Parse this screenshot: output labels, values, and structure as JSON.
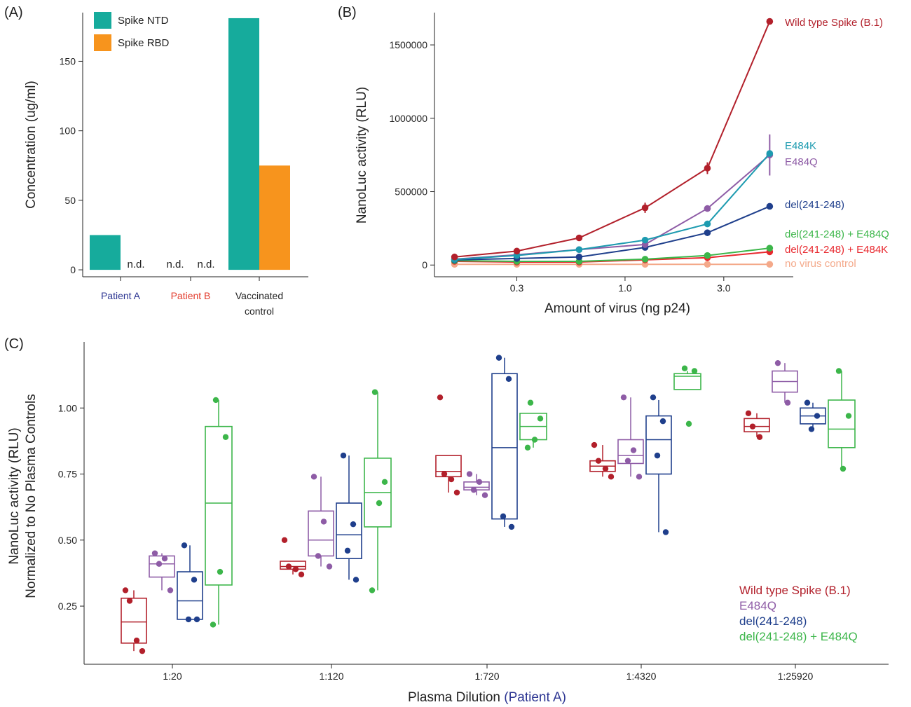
{
  "colors": {
    "ntd": "#16ab9c",
    "rbd": "#f7941d",
    "wt": "#b2202b",
    "e484k": "#1d9bb0",
    "e484q": "#8e5ca6",
    "del": "#1f3f8c",
    "del_e484q": "#3cb64a",
    "del_e484k": "#e8282e",
    "novirus": "#f4a98a",
    "patientA": "#2c3592",
    "patientB": "#e23b2c"
  },
  "chart_data": [
    {
      "panel": "(A)",
      "type": "bar",
      "categories": [
        [
          "Patient A"
        ],
        [
          "Patient B"
        ],
        [
          "Vaccinated",
          "control"
        ]
      ],
      "series": [
        {
          "name": "Spike NTD",
          "values": [
            25,
            null,
            181
          ]
        },
        {
          "name": "Spike RBD",
          "values": [
            null,
            null,
            75
          ]
        }
      ],
      "not_detected_label": "n.d.",
      "ylabel": "Concentration (ug/ml)",
      "ylim": [
        -5,
        185
      ],
      "yticks": [
        0,
        50,
        100,
        150
      ],
      "legend": "top-left"
    },
    {
      "panel": "(B)",
      "type": "line",
      "x": [
        0.15,
        0.3,
        0.6,
        1.25,
        2.5,
        5.0
      ],
      "xscale": "log",
      "xticks": [
        0.3,
        1.0,
        3.0
      ],
      "xtick_labels": [
        "0.3",
        "1.0",
        "3.0"
      ],
      "xlim": [
        0.12,
        6.5
      ],
      "xlabel": "Amount of virus (ng p24)",
      "ylabel": "NanoLuc activity (RLU)",
      "ylim": [
        -80000,
        1720000
      ],
      "yticks": [
        0,
        500000,
        1000000,
        1500000
      ],
      "series": [
        {
          "name": "Wild type Spike (B.1)",
          "values": [
            55000,
            95000,
            185000,
            390000,
            660000,
            1660000
          ],
          "errors": [
            0,
            0,
            0,
            35000,
            40000,
            0
          ],
          "color_key": "wt"
        },
        {
          "name": "E484K",
          "values": [
            38000,
            65000,
            105000,
            170000,
            280000,
            760000
          ],
          "errors": [
            0,
            0,
            0,
            0,
            0,
            0
          ],
          "color_key": "e484k"
        },
        {
          "name": "E484Q",
          "values": [
            40000,
            70000,
            105000,
            140000,
            385000,
            750000
          ],
          "errors": [
            0,
            0,
            0,
            0,
            0,
            140000
          ],
          "color_key": "e484q"
        },
        {
          "name": "del(241-248)",
          "values": [
            35000,
            45000,
            55000,
            120000,
            220000,
            400000
          ],
          "errors": [
            0,
            0,
            0,
            0,
            0,
            0
          ],
          "color_key": "del"
        },
        {
          "name": "del(241-248) + E484Q",
          "values": [
            30000,
            25000,
            25000,
            40000,
            65000,
            115000
          ],
          "errors": [
            0,
            0,
            0,
            0,
            0,
            0
          ],
          "color_key": "del_e484q"
        },
        {
          "name": "del(241-248) + E484K",
          "values": [
            25000,
            20000,
            20000,
            35000,
            50000,
            90000
          ],
          "errors": [
            0,
            0,
            0,
            0,
            0,
            0
          ],
          "color_key": "del_e484k"
        },
        {
          "name": "no virus control",
          "values": [
            5000,
            5000,
            5000,
            5000,
            5000,
            5000
          ],
          "errors": [
            0,
            0,
            0,
            0,
            0,
            0
          ],
          "color_key": "novirus"
        }
      ]
    },
    {
      "panel": "(C)",
      "type": "box",
      "categories": [
        "1:20",
        "1:120",
        "1:720",
        "1:4320",
        "1:25920"
      ],
      "xlabel": "Plasma Dilution",
      "xlabel_highlight": "(Patient A)",
      "ylabel": [
        "NanoLuc activity (RLU)",
        "Normalized to No Plasma Controls"
      ],
      "ylim": [
        0.03,
        1.25
      ],
      "yticks": [
        0.25,
        0.5,
        0.75,
        1.0
      ],
      "ytick_labels": [
        "0.25",
        "0.50",
        "0.75",
        "1.00"
      ],
      "legend": "bottom-right",
      "series": [
        {
          "name": "Wild type Spike (B.1)",
          "color_key": "wt",
          "groups": [
            {
              "q1": 0.11,
              "median": 0.19,
              "q3": 0.28,
              "lo": 0.08,
              "hi": 0.31,
              "points": [
                0.31,
                0.27,
                0.12,
                0.08
              ]
            },
            {
              "q1": 0.39,
              "median": 0.4,
              "q3": 0.42,
              "lo": 0.37,
              "hi": 0.42,
              "points": [
                0.5,
                0.4,
                0.39,
                0.37
              ]
            },
            {
              "q1": 0.74,
              "median": 0.76,
              "q3": 0.82,
              "lo": 0.68,
              "hi": 0.82,
              "points": [
                1.04,
                0.75,
                0.73,
                0.68
              ]
            },
            {
              "q1": 0.76,
              "median": 0.78,
              "q3": 0.8,
              "lo": 0.74,
              "hi": 0.86,
              "points": [
                0.86,
                0.8,
                0.77,
                0.74
              ]
            },
            {
              "q1": 0.91,
              "median": 0.93,
              "q3": 0.96,
              "lo": 0.89,
              "hi": 0.98,
              "points": [
                0.98,
                0.93,
                0.89
              ]
            }
          ]
        },
        {
          "name": "E484Q",
          "color_key": "e484q",
          "groups": [
            {
              "q1": 0.36,
              "median": 0.41,
              "q3": 0.44,
              "lo": 0.31,
              "hi": 0.45,
              "points": [
                0.45,
                0.43,
                0.41,
                0.31
              ]
            },
            {
              "q1": 0.44,
              "median": 0.5,
              "q3": 0.61,
              "lo": 0.4,
              "hi": 0.74,
              "points": [
                0.74,
                0.57,
                0.44,
                0.4
              ]
            },
            {
              "q1": 0.69,
              "median": 0.7,
              "q3": 0.72,
              "lo": 0.67,
              "hi": 0.75,
              "points": [
                0.75,
                0.72,
                0.69,
                0.67
              ]
            },
            {
              "q1": 0.79,
              "median": 0.82,
              "q3": 0.88,
              "lo": 0.74,
              "hi": 1.04,
              "points": [
                1.04,
                0.84,
                0.8,
                0.74
              ]
            },
            {
              "q1": 1.06,
              "median": 1.1,
              "q3": 1.14,
              "lo": 1.02,
              "hi": 1.17,
              "points": [
                1.17,
                1.02
              ]
            }
          ]
        },
        {
          "name": "del(241-248)",
          "color_key": "del",
          "groups": [
            {
              "q1": 0.2,
              "median": 0.27,
              "q3": 0.38,
              "lo": 0.2,
              "hi": 0.48,
              "points": [
                0.48,
                0.35,
                0.2,
                0.2
              ]
            },
            {
              "q1": 0.43,
              "median": 0.52,
              "q3": 0.64,
              "lo": 0.35,
              "hi": 0.82,
              "points": [
                0.82,
                0.56,
                0.46,
                0.35
              ]
            },
            {
              "q1": 0.58,
              "median": 0.85,
              "q3": 1.13,
              "lo": 0.55,
              "hi": 1.19,
              "points": [
                1.19,
                1.11,
                0.59,
                0.55
              ]
            },
            {
              "q1": 0.75,
              "median": 0.88,
              "q3": 0.97,
              "lo": 0.53,
              "hi": 1.03,
              "points": [
                1.04,
                0.95,
                0.82,
                0.53
              ]
            },
            {
              "q1": 0.94,
              "median": 0.97,
              "q3": 1.0,
              "lo": 0.92,
              "hi": 1.02,
              "points": [
                1.02,
                0.97,
                0.92
              ]
            }
          ]
        },
        {
          "name": "del(241-248) + E484Q",
          "color_key": "del_e484q",
          "groups": [
            {
              "q1": 0.33,
              "median": 0.64,
              "q3": 0.93,
              "lo": 0.18,
              "hi": 1.03,
              "points": [
                1.03,
                0.89,
                0.38,
                0.18
              ]
            },
            {
              "q1": 0.55,
              "median": 0.68,
              "q3": 0.81,
              "lo": 0.31,
              "hi": 1.06,
              "points": [
                1.06,
                0.72,
                0.64,
                0.31
              ]
            },
            {
              "q1": 0.88,
              "median": 0.93,
              "q3": 0.98,
              "lo": 0.85,
              "hi": 0.98,
              "points": [
                1.02,
                0.96,
                0.88,
                0.85
              ]
            },
            {
              "q1": 1.07,
              "median": 1.12,
              "q3": 1.13,
              "lo": 1.07,
              "hi": 1.14,
              "points": [
                1.15,
                1.14,
                0.94
              ]
            },
            {
              "q1": 0.85,
              "median": 0.92,
              "q3": 1.03,
              "lo": 0.77,
              "hi": 1.14,
              "points": [
                1.14,
                0.97,
                0.77
              ]
            }
          ]
        }
      ]
    }
  ]
}
